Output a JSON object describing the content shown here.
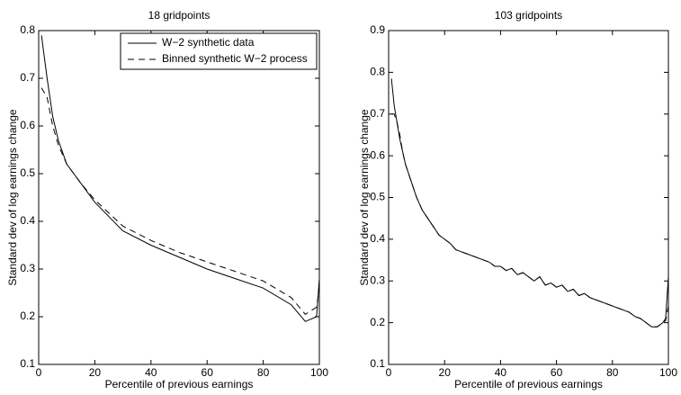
{
  "chart_data": [
    {
      "type": "line",
      "title": "18 gridpoints",
      "x_label": "Percentile of previous earnings",
      "y_label": "Standard dev of log earnings change",
      "x": [
        1,
        3,
        5,
        7,
        10,
        15,
        20,
        30,
        40,
        50,
        60,
        70,
        80,
        90,
        95,
        99,
        100
      ],
      "series": [
        {
          "name": "W−2 synthetic data",
          "color": "#000000",
          "line_style": "solid",
          "values": [
            0.79,
            0.7,
            0.62,
            0.57,
            0.52,
            0.48,
            0.44,
            0.38,
            0.35,
            0.325,
            0.3,
            0.28,
            0.26,
            0.225,
            0.19,
            0.2,
            0.28
          ]
        },
        {
          "name": "Binned synthetic W−2 process",
          "color": "#000000",
          "line_style": "dashed",
          "values": [
            0.68,
            0.66,
            0.6,
            0.56,
            0.52,
            0.48,
            0.445,
            0.39,
            0.36,
            0.335,
            0.315,
            0.295,
            0.275,
            0.24,
            0.205,
            0.22,
            0.26
          ]
        }
      ],
      "xlim": [
        0,
        100
      ],
      "xticks": [
        0,
        20,
        40,
        60,
        80,
        100
      ],
      "ylim": [
        0.1,
        0.8
      ],
      "yticks": [
        0.1,
        0.2,
        0.3,
        0.4,
        0.5,
        0.6,
        0.7,
        0.8
      ],
      "legend": "northeast"
    },
    {
      "type": "line",
      "title": "103 gridpoints",
      "x_label": "Percentile of previous earnings",
      "y_label": "Standard dev of log earnings change",
      "x": [
        1,
        2,
        3,
        4,
        5,
        6,
        8,
        10,
        12,
        14,
        16,
        18,
        20,
        22,
        24,
        26,
        28,
        30,
        32,
        34,
        36,
        38,
        40,
        42,
        44,
        46,
        48,
        50,
        52,
        54,
        56,
        58,
        60,
        62,
        64,
        66,
        68,
        70,
        72,
        74,
        76,
        78,
        80,
        82,
        84,
        86,
        88,
        90,
        92,
        94,
        96,
        98,
        99,
        100
      ],
      "series": [
        {
          "color": "#000000",
          "line_style": "solid",
          "values": [
            0.785,
            0.72,
            0.68,
            0.64,
            0.61,
            0.58,
            0.54,
            0.5,
            0.47,
            0.45,
            0.43,
            0.41,
            0.4,
            0.39,
            0.375,
            0.37,
            0.365,
            0.36,
            0.355,
            0.35,
            0.345,
            0.335,
            0.335,
            0.325,
            0.33,
            0.315,
            0.32,
            0.31,
            0.3,
            0.31,
            0.29,
            0.295,
            0.285,
            0.29,
            0.275,
            0.28,
            0.265,
            0.27,
            0.26,
            0.255,
            0.25,
            0.245,
            0.24,
            0.235,
            0.23,
            0.225,
            0.215,
            0.21,
            0.2,
            0.19,
            0.19,
            0.2,
            0.21,
            0.31
          ]
        },
        {
          "color": "#000000",
          "line_style": "dashed",
          "values": [
            0.7,
            0.7,
            0.68,
            0.65,
            0.61,
            0.58,
            0.54,
            0.5,
            0.47,
            0.45,
            0.43,
            0.41,
            0.4,
            0.39,
            0.375,
            0.37,
            0.365,
            0.36,
            0.355,
            0.35,
            0.345,
            0.335,
            0.335,
            0.325,
            0.33,
            0.315,
            0.32,
            0.31,
            0.3,
            0.31,
            0.29,
            0.295,
            0.285,
            0.29,
            0.275,
            0.28,
            0.265,
            0.27,
            0.26,
            0.255,
            0.25,
            0.245,
            0.24,
            0.235,
            0.23,
            0.225,
            0.215,
            0.21,
            0.2,
            0.19,
            0.19,
            0.2,
            0.205,
            0.24
          ]
        }
      ],
      "xlim": [
        0,
        100
      ],
      "xticks": [
        0,
        20,
        40,
        60,
        80,
        100
      ],
      "ylim": [
        0.1,
        0.9
      ],
      "yticks": [
        0.1,
        0.2,
        0.3,
        0.4,
        0.5,
        0.6,
        0.7,
        0.8,
        0.9
      ],
      "legend": false
    }
  ]
}
